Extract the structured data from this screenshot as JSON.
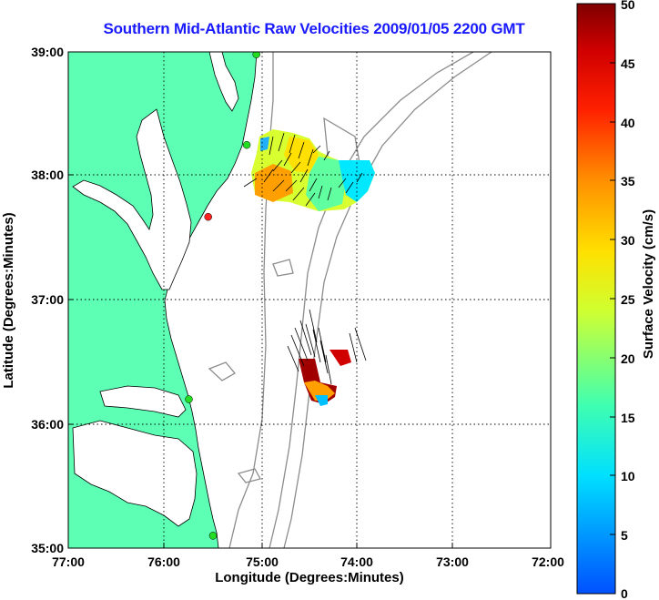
{
  "title": "Southern Mid-Atlantic Raw Velocities 2009/01/05 2200 GMT",
  "x_axis": {
    "label": "Longitude (Degrees:Minutes)",
    "ticks": [
      "77:00",
      "76:00",
      "75:00",
      "74:00",
      "73:00",
      "72:00"
    ]
  },
  "y_axis": {
    "label": "Latitude (Degrees:Minutes)",
    "ticks": [
      "39:00",
      "38:00",
      "37:00",
      "36:00",
      "35:00"
    ]
  },
  "colorbar": {
    "label": "Surface Velocity (cm/s)",
    "ticks": [
      "50",
      "45",
      "40",
      "35",
      "30",
      "25",
      "20",
      "15",
      "10",
      "5",
      "0"
    ],
    "range": [
      0,
      50
    ],
    "colors": [
      "#0060ff",
      "#00c0ff",
      "#00ffe0",
      "#60ff90",
      "#d0ff30",
      "#ffe000",
      "#ffa000",
      "#ff5000",
      "#ff0000",
      "#c00000",
      "#800000"
    ]
  },
  "colors": {
    "land": "#5cffb4",
    "bathymetry": "#8c8c8c",
    "title": "#1a1aff",
    "station": "#22dd22",
    "station_alert": "#ff2020"
  },
  "grid": "dotted",
  "stations": [
    {
      "lon": -75.05,
      "lat": 38.98,
      "status": "ok"
    },
    {
      "lon": -75.15,
      "lat": 38.25,
      "status": "ok"
    },
    {
      "lon": -75.55,
      "lat": 37.67,
      "status": "alert"
    },
    {
      "lon": -75.75,
      "lat": 36.2,
      "status": "ok"
    },
    {
      "lon": -75.5,
      "lat": 35.1,
      "status": "ok"
    }
  ]
}
